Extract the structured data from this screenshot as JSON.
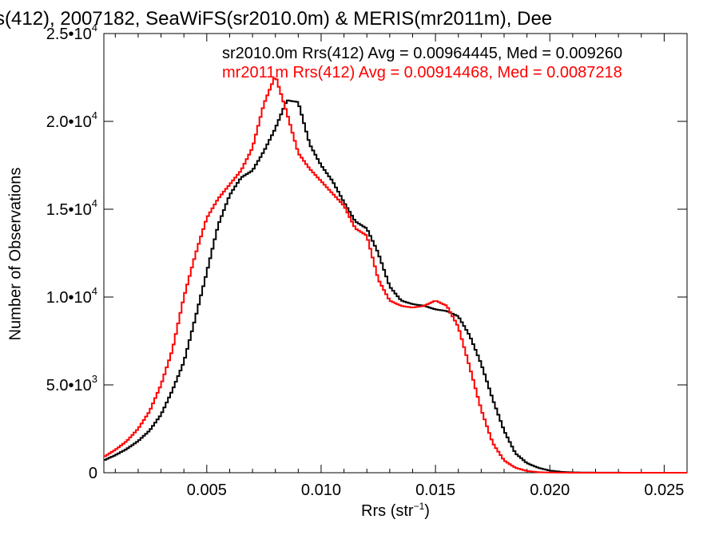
{
  "chart_data": {
    "type": "line",
    "title": "s(412), 2007182, SeaWiFS(sr2010.0m) & MERIS(mr2011m), Dee",
    "xlabel": "Rrs (str",
    "xlabel_sup": "−1",
    "xlabel_close": ")",
    "ylabel": "Number of Observations",
    "xlim": [
      0.0005,
      0.026
    ],
    "ylim": [
      0,
      25000
    ],
    "x_ticks": [
      {
        "value": 0.005,
        "label": "0.005"
      },
      {
        "value": 0.01,
        "label": "0.010"
      },
      {
        "value": 0.015,
        "label": "0.015"
      },
      {
        "value": 0.02,
        "label": "0.020"
      },
      {
        "value": 0.025,
        "label": "0.025"
      }
    ],
    "y_ticks": [
      {
        "value": 0,
        "mant": "0",
        "exp": ""
      },
      {
        "value": 5000,
        "mant": "5.0•10",
        "exp": "3"
      },
      {
        "value": 10000,
        "mant": "1.0•10",
        "exp": "4"
      },
      {
        "value": 15000,
        "mant": "1.5•10",
        "exp": "4"
      },
      {
        "value": 20000,
        "mant": "2.0•10",
        "exp": "4"
      },
      {
        "value": 25000,
        "mant": "2.5•10",
        "exp": "4"
      }
    ],
    "series": [
      {
        "name": "sr2010.0m Rrs(412) Avg = 0.00964445, Med = 0.009260",
        "color": "#000000",
        "points": [
          [
            0.0005,
            700
          ],
          [
            0.001,
            1000
          ],
          [
            0.0015,
            1350
          ],
          [
            0.002,
            1800
          ],
          [
            0.0025,
            2400
          ],
          [
            0.003,
            3300
          ],
          [
            0.0035,
            4700
          ],
          [
            0.004,
            6300
          ],
          [
            0.0045,
            8800
          ],
          [
            0.005,
            11400
          ],
          [
            0.0055,
            14100
          ],
          [
            0.006,
            15800
          ],
          [
            0.0065,
            16800
          ],
          [
            0.007,
            17200
          ],
          [
            0.0075,
            18300
          ],
          [
            0.008,
            19600
          ],
          [
            0.0085,
            21200
          ],
          [
            0.009,
            21100
          ],
          [
            0.0095,
            18700
          ],
          [
            0.01,
            17500
          ],
          [
            0.0105,
            16600
          ],
          [
            0.011,
            15400
          ],
          [
            0.0115,
            14300
          ],
          [
            0.012,
            13900
          ],
          [
            0.0125,
            12500
          ],
          [
            0.013,
            10600
          ],
          [
            0.0135,
            9800
          ],
          [
            0.014,
            9600
          ],
          [
            0.0145,
            9500
          ],
          [
            0.015,
            9300
          ],
          [
            0.0155,
            9200
          ],
          [
            0.016,
            8900
          ],
          [
            0.0165,
            7800
          ],
          [
            0.017,
            6200
          ],
          [
            0.0175,
            4200
          ],
          [
            0.018,
            2400
          ],
          [
            0.0185,
            1100
          ],
          [
            0.019,
            550
          ],
          [
            0.0195,
            280
          ],
          [
            0.02,
            120
          ],
          [
            0.0205,
            50
          ],
          [
            0.021,
            20
          ],
          [
            0.022,
            5
          ],
          [
            0.024,
            0
          ],
          [
            0.026,
            0
          ]
        ]
      },
      {
        "name": "mr2011m Rrs(412) Avg = 0.00914468, Med = 0.0087218",
        "color": "#ff0000",
        "points": [
          [
            0.0005,
            900
          ],
          [
            0.001,
            1300
          ],
          [
            0.0015,
            1800
          ],
          [
            0.002,
            2500
          ],
          [
            0.0025,
            3500
          ],
          [
            0.003,
            5000
          ],
          [
            0.0035,
            7000
          ],
          [
            0.004,
            10000
          ],
          [
            0.0045,
            12400
          ],
          [
            0.005,
            14500
          ],
          [
            0.0055,
            15600
          ],
          [
            0.006,
            16400
          ],
          [
            0.0065,
            17200
          ],
          [
            0.007,
            18500
          ],
          [
            0.0075,
            21000
          ],
          [
            0.008,
            22600
          ],
          [
            0.0085,
            20500
          ],
          [
            0.009,
            18200
          ],
          [
            0.0095,
            17300
          ],
          [
            0.01,
            16600
          ],
          [
            0.0105,
            15900
          ],
          [
            0.011,
            15200
          ],
          [
            0.0115,
            13900
          ],
          [
            0.012,
            13500
          ],
          [
            0.0125,
            11000
          ],
          [
            0.013,
            9800
          ],
          [
            0.0135,
            9500
          ],
          [
            0.014,
            9400
          ],
          [
            0.0145,
            9500
          ],
          [
            0.015,
            9800
          ],
          [
            0.0155,
            9500
          ],
          [
            0.016,
            8300
          ],
          [
            0.0165,
            6000
          ],
          [
            0.017,
            3600
          ],
          [
            0.0175,
            1700
          ],
          [
            0.018,
            700
          ],
          [
            0.0185,
            280
          ],
          [
            0.019,
            100
          ],
          [
            0.0195,
            30
          ],
          [
            0.02,
            10
          ],
          [
            0.021,
            0
          ],
          [
            0.026,
            0
          ]
        ]
      }
    ]
  }
}
